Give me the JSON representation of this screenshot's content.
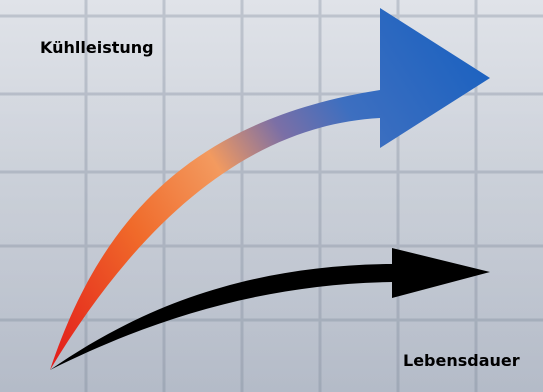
{
  "diagram": {
    "labels": {
      "cooling_performance": "Kühlleistung",
      "lifespan": "Lebensdauer"
    },
    "arrows": [
      {
        "name": "cooling-performance-arrow",
        "gradient": [
          "#e21a1a",
          "#f06a2a",
          "#f59a5c",
          "#5b6fb6",
          "#2f6fc6",
          "#1f63c0"
        ]
      },
      {
        "name": "lifespan-arrow",
        "color": "#000000"
      }
    ],
    "colors": {
      "background_top": "#d6dae2",
      "background_bottom": "#b4bbc8",
      "grid_line": "#9aa3b2"
    }
  }
}
